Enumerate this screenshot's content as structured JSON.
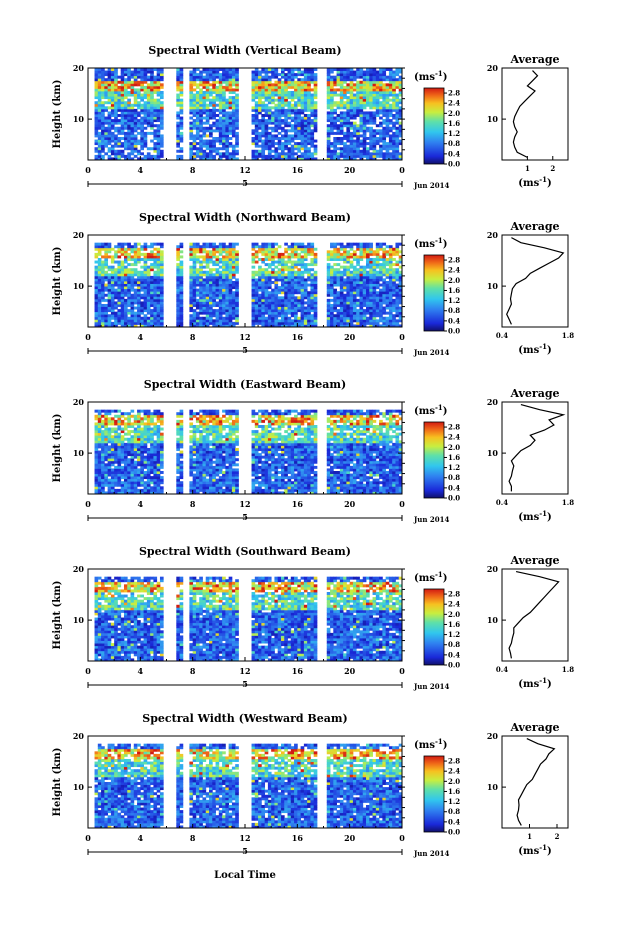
{
  "chart_data": {
    "type": "heatmap",
    "date_label": "Jun 2014",
    "date_day": "5",
    "xlabel": "Local Time",
    "ylabel": "Height (km)",
    "unit_label": "(ms",
    "unit_exp": "-1",
    "avg_title": "Average",
    "x_ticks": [
      "0",
      "4",
      "8",
      "12",
      "16",
      "20",
      "0"
    ],
    "y_ticks": [
      "20",
      "10"
    ],
    "colorbar_ticks": [
      "2.8",
      "2.4",
      "2.0",
      "1.6",
      "1.2",
      "0.8",
      "0.4",
      "0.0"
    ],
    "colorbar_range": [
      0,
      3.0
    ],
    "xlim": [
      0,
      24
    ],
    "ylim": [
      2,
      20
    ],
    "gaps_hours": [
      [
        5.8,
        6.8
      ],
      [
        7.2,
        7.8
      ],
      [
        11.6,
        12.4
      ],
      [
        17.6,
        18.3
      ]
    ],
    "panels": [
      {
        "title": "Spectral Width (Vertical Beam)",
        "avg_ticks": [
          "1",
          "2"
        ],
        "avg_xlim": [
          0,
          2.6
        ],
        "top_km": 20,
        "avg_profile": {
          "height": [
            2.5,
            3.5,
            4.5,
            5.5,
            6.5,
            7.5,
            8.5,
            9.5,
            10.5,
            11.5,
            12.5,
            13.5,
            14.5,
            15.5,
            16.5,
            17.5,
            18.5,
            19.5
          ],
          "value": [
            1.0,
            0.6,
            0.5,
            0.45,
            0.5,
            0.6,
            0.5,
            0.45,
            0.5,
            0.6,
            0.7,
            0.9,
            1.1,
            1.3,
            1.0,
            1.2,
            1.4,
            1.2
          ]
        }
      },
      {
        "title": "Spectral Width (Northward Beam)",
        "avg_ticks": [
          "0.4",
          "1.8"
        ],
        "avg_xlim": [
          0.4,
          1.8
        ],
        "top_km": 18,
        "avg_profile": {
          "height": [
            2.5,
            3.5,
            4.5,
            5.5,
            6.5,
            7.5,
            8.5,
            9.5,
            10.5,
            11.5,
            12.5,
            13.5,
            14.5,
            15.5,
            16.5,
            17.5,
            18.5,
            19.5
          ],
          "value": [
            0.6,
            0.55,
            0.5,
            0.55,
            0.6,
            0.58,
            0.6,
            0.62,
            0.7,
            0.9,
            1.0,
            1.2,
            1.4,
            1.6,
            1.7,
            1.3,
            0.8,
            0.6
          ]
        }
      },
      {
        "title": "Spectral Width (Eastward Beam)",
        "avg_ticks": [
          "0.4",
          "1.8"
        ],
        "avg_xlim": [
          0.4,
          1.8
        ],
        "top_km": 18,
        "avg_profile": {
          "height": [
            2.5,
            3.5,
            4.5,
            5.5,
            6.5,
            7.5,
            8.5,
            9.5,
            10.5,
            11.5,
            12.5,
            13.5,
            14.5,
            15.5,
            16.5,
            17.5,
            18.5,
            19.5
          ],
          "value": [
            0.6,
            0.6,
            0.55,
            0.6,
            0.62,
            0.65,
            0.6,
            0.7,
            0.8,
            1.0,
            1.1,
            1.0,
            1.3,
            1.5,
            1.4,
            1.7,
            1.2,
            0.8
          ]
        }
      },
      {
        "title": "Spectral Width (Southward Beam)",
        "avg_ticks": [
          "0.4",
          "1.8"
        ],
        "avg_xlim": [
          0.4,
          1.8
        ],
        "top_km": 18,
        "avg_profile": {
          "height": [
            2.5,
            3.5,
            4.5,
            5.5,
            6.5,
            7.5,
            8.5,
            9.5,
            10.5,
            11.5,
            12.5,
            13.5,
            14.5,
            15.5,
            16.5,
            17.5,
            18.5,
            19.5
          ],
          "value": [
            0.6,
            0.58,
            0.55,
            0.6,
            0.62,
            0.65,
            0.65,
            0.75,
            0.85,
            1.0,
            1.1,
            1.2,
            1.3,
            1.4,
            1.5,
            1.6,
            1.2,
            0.7
          ]
        }
      },
      {
        "title": "Spectral Width (Westward Beam)",
        "avg_ticks": [
          "1",
          "2"
        ],
        "avg_xlim": [
          0,
          2.4
        ],
        "top_km": 18,
        "avg_profile": {
          "height": [
            2.5,
            3.5,
            4.5,
            5.5,
            6.5,
            7.5,
            8.5,
            9.5,
            10.5,
            11.5,
            12.5,
            13.5,
            14.5,
            15.5,
            16.5,
            17.5,
            18.5,
            19.5
          ],
          "value": [
            0.7,
            0.6,
            0.55,
            0.6,
            0.62,
            0.6,
            0.7,
            0.8,
            0.9,
            1.1,
            1.2,
            1.3,
            1.4,
            1.6,
            1.7,
            1.9,
            1.3,
            0.9
          ]
        }
      }
    ]
  }
}
